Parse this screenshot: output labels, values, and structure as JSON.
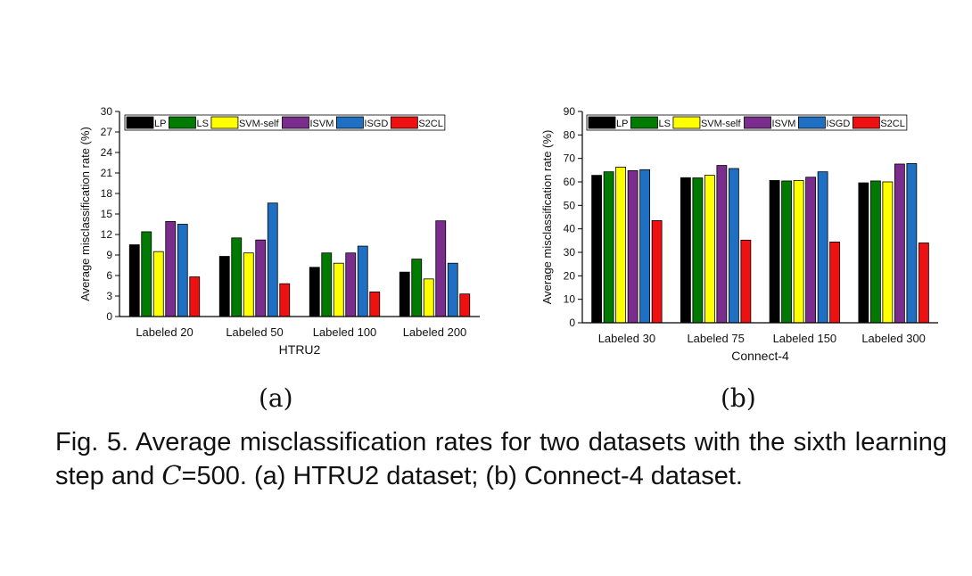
{
  "chart_data": [
    {
      "type": "bar",
      "panel": "(a)",
      "ylabel": "Average misclassification rate (%)",
      "xlabel": "HTRU2",
      "ylim": [
        0,
        30
      ],
      "yticks": [
        0,
        3,
        6,
        9,
        12,
        15,
        18,
        21,
        24,
        27,
        30
      ],
      "categories": [
        "Labeled 20",
        "Labeled 50",
        "Labeled 100",
        "Labeled 200"
      ],
      "legend_position": "top",
      "series": [
        {
          "name": "LP",
          "color": "#000000",
          "values": [
            10.5,
            8.8,
            7.2,
            6.5
          ]
        },
        {
          "name": "LS",
          "color": "#007a00",
          "values": [
            12.4,
            11.5,
            9.3,
            8.4
          ]
        },
        {
          "name": "SVM-self",
          "color": "#ffff00",
          "values": [
            9.5,
            9.3,
            7.8,
            5.5
          ]
        },
        {
          "name": "ISVM",
          "color": "#7b2d8e",
          "values": [
            13.9,
            11.2,
            9.3,
            14.0
          ]
        },
        {
          "name": "ISGD",
          "color": "#1f6fc2",
          "values": [
            13.5,
            16.6,
            10.3,
            7.8
          ]
        },
        {
          "name": "S2CL",
          "color": "#ee1111",
          "values": [
            5.8,
            4.8,
            3.6,
            3.3
          ]
        }
      ]
    },
    {
      "type": "bar",
      "panel": "(b)",
      "ylabel": "Average misclassification rate (%)",
      "xlabel": "Connect-4",
      "ylim": [
        0,
        90
      ],
      "yticks": [
        0,
        10,
        20,
        30,
        40,
        50,
        60,
        70,
        80,
        90
      ],
      "categories": [
        "Labeled 30",
        "Labeled 75",
        "Labeled 150",
        "Labeled 300"
      ],
      "legend_position": "top",
      "series": [
        {
          "name": "LP",
          "color": "#000000",
          "values": [
            62.8,
            61.8,
            60.6,
            59.6
          ]
        },
        {
          "name": "LS",
          "color": "#007a00",
          "values": [
            64.3,
            61.7,
            60.4,
            60.4
          ]
        },
        {
          "name": "SVM-self",
          "color": "#ffff00",
          "values": [
            66.3,
            62.8,
            60.6,
            60.0
          ]
        },
        {
          "name": "ISVM",
          "color": "#7b2d8e",
          "values": [
            64.8,
            67.0,
            62.0,
            67.6
          ]
        },
        {
          "name": "ISGD",
          "color": "#1f6fc2",
          "values": [
            65.2,
            65.7,
            64.3,
            67.8
          ]
        },
        {
          "name": "S2CL",
          "color": "#ee1111",
          "values": [
            43.5,
            35.2,
            34.4,
            34.0
          ]
        }
      ]
    }
  ],
  "figure": {
    "sub_a": "(a)",
    "sub_b": "(b)",
    "caption_part1": "Fig. 5. Average misclassification rates for two datasets with the sixth learning step and ",
    "caption_var": "C",
    "caption_part2": "=500. (a) HTRU2 dataset; (b) Connect-4 dataset."
  }
}
